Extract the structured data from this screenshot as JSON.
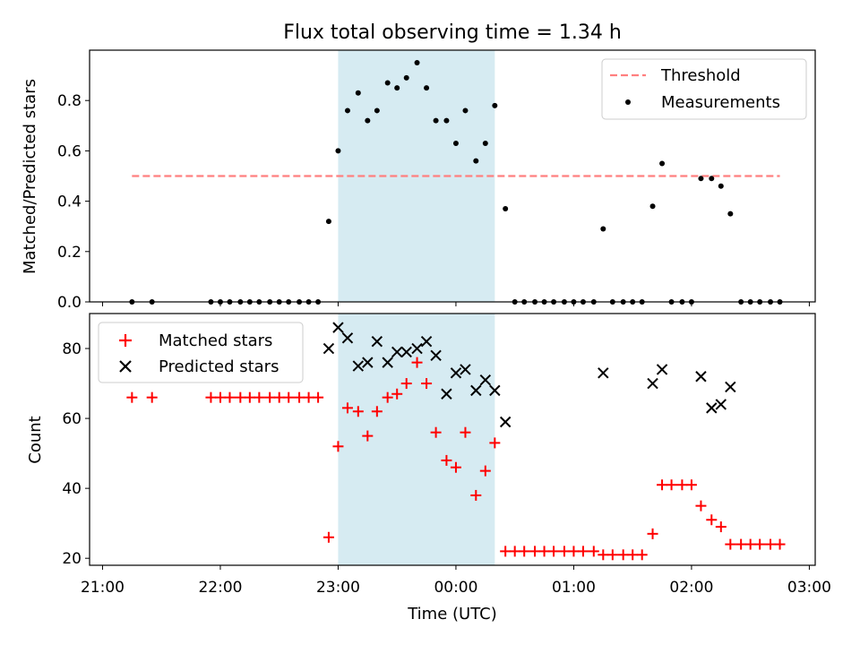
{
  "chart_data": [
    {
      "type": "scatter",
      "title": "Flux total observing time = 1.34 h",
      "xlabel": "",
      "ylabel": "Matched/Predicted stars",
      "x_unit": "hours after 21:00 UTC",
      "xlim": [
        -0.11,
        6.05
      ],
      "ylim": [
        0.0,
        1.0
      ],
      "yticks": [
        0.0,
        0.2,
        0.4,
        0.6,
        0.8
      ],
      "ytick_labels": [
        "0.0",
        "0.2",
        "0.4",
        "0.6",
        "0.8"
      ],
      "shaded_interval": [
        2.0,
        3.33
      ],
      "threshold": {
        "name": "Threshold",
        "y": 0.5,
        "x_range": [
          0.25,
          5.75
        ],
        "color": "#ff7f7f",
        "style": "dashed"
      },
      "legend": {
        "position": "upper right",
        "entries": [
          "Threshold",
          "Measurements"
        ]
      },
      "series": [
        {
          "name": "Measurements",
          "color": "#000000",
          "marker": "dot",
          "points": [
            [
              0.25,
              0.0
            ],
            [
              0.42,
              0.0
            ],
            [
              0.92,
              0.0
            ],
            [
              1.0,
              0.0
            ],
            [
              1.08,
              0.0
            ],
            [
              1.17,
              0.0
            ],
            [
              1.25,
              0.0
            ],
            [
              1.33,
              0.0
            ],
            [
              1.42,
              0.0
            ],
            [
              1.5,
              0.0
            ],
            [
              1.58,
              0.0
            ],
            [
              1.67,
              0.0
            ],
            [
              1.75,
              0.0
            ],
            [
              1.83,
              0.0
            ],
            [
              1.92,
              0.32
            ],
            [
              2.0,
              0.6
            ],
            [
              2.08,
              0.76
            ],
            [
              2.17,
              0.83
            ],
            [
              2.25,
              0.72
            ],
            [
              2.33,
              0.76
            ],
            [
              2.42,
              0.87
            ],
            [
              2.5,
              0.85
            ],
            [
              2.58,
              0.89
            ],
            [
              2.67,
              0.95
            ],
            [
              2.75,
              0.85
            ],
            [
              2.83,
              0.72
            ],
            [
              2.92,
              0.72
            ],
            [
              3.0,
              0.63
            ],
            [
              3.08,
              0.76
            ],
            [
              3.17,
              0.56
            ],
            [
              3.25,
              0.63
            ],
            [
              3.33,
              0.78
            ],
            [
              3.42,
              0.37
            ],
            [
              3.5,
              0.0
            ],
            [
              3.58,
              0.0
            ],
            [
              3.67,
              0.0
            ],
            [
              3.75,
              0.0
            ],
            [
              3.83,
              0.0
            ],
            [
              3.92,
              0.0
            ],
            [
              4.0,
              0.0
            ],
            [
              4.08,
              0.0
            ],
            [
              4.17,
              0.0
            ],
            [
              4.25,
              0.29
            ],
            [
              4.33,
              0.0
            ],
            [
              4.42,
              0.0
            ],
            [
              4.5,
              0.0
            ],
            [
              4.58,
              0.0
            ],
            [
              4.67,
              0.38
            ],
            [
              4.75,
              0.55
            ],
            [
              4.83,
              0.0
            ],
            [
              4.92,
              0.0
            ],
            [
              5.0,
              0.0
            ],
            [
              5.08,
              0.49
            ],
            [
              5.17,
              0.49
            ],
            [
              5.25,
              0.46
            ],
            [
              5.33,
              0.35
            ],
            [
              5.42,
              0.0
            ],
            [
              5.5,
              0.0
            ],
            [
              5.58,
              0.0
            ],
            [
              5.67,
              0.0
            ],
            [
              5.75,
              0.0
            ]
          ]
        }
      ]
    },
    {
      "type": "scatter",
      "title": "",
      "xlabel": "Time (UTC)",
      "ylabel": "Count",
      "x_unit": "hours after 21:00 UTC",
      "xlim": [
        -0.11,
        6.05
      ],
      "ylim": [
        18,
        90
      ],
      "yticks": [
        20,
        40,
        60,
        80
      ],
      "ytick_labels": [
        "20",
        "40",
        "60",
        "80"
      ],
      "xticks": [
        0,
        1,
        2,
        3,
        4,
        5,
        6
      ],
      "xtick_labels": [
        "21:00",
        "22:00",
        "23:00",
        "00:00",
        "01:00",
        "02:00",
        "03:00"
      ],
      "shaded_interval": [
        2.0,
        3.33
      ],
      "legend": {
        "position": "upper left",
        "entries": [
          "Matched stars",
          "Predicted stars"
        ]
      },
      "series": [
        {
          "name": "Matched stars",
          "color": "#ff0000",
          "marker": "plus",
          "points": [
            [
              0.25,
              66
            ],
            [
              0.42,
              66
            ],
            [
              0.92,
              66
            ],
            [
              1.0,
              66
            ],
            [
              1.08,
              66
            ],
            [
              1.17,
              66
            ],
            [
              1.25,
              66
            ],
            [
              1.33,
              66
            ],
            [
              1.42,
              66
            ],
            [
              1.5,
              66
            ],
            [
              1.58,
              66
            ],
            [
              1.67,
              66
            ],
            [
              1.75,
              66
            ],
            [
              1.83,
              66
            ],
            [
              1.92,
              26
            ],
            [
              2.0,
              52
            ],
            [
              2.08,
              63
            ],
            [
              2.17,
              62
            ],
            [
              2.25,
              55
            ],
            [
              2.33,
              62
            ],
            [
              2.42,
              66
            ],
            [
              2.5,
              67
            ],
            [
              2.58,
              70
            ],
            [
              2.67,
              76
            ],
            [
              2.75,
              70
            ],
            [
              2.83,
              56
            ],
            [
              2.92,
              48
            ],
            [
              3.0,
              46
            ],
            [
              3.08,
              56
            ],
            [
              3.17,
              38
            ],
            [
              3.25,
              45
            ],
            [
              3.33,
              53
            ],
            [
              3.42,
              22
            ],
            [
              3.5,
              22
            ],
            [
              3.58,
              22
            ],
            [
              3.67,
              22
            ],
            [
              3.75,
              22
            ],
            [
              3.83,
              22
            ],
            [
              3.92,
              22
            ],
            [
              4.0,
              22
            ],
            [
              4.08,
              22
            ],
            [
              4.17,
              22
            ],
            [
              4.25,
              21
            ],
            [
              4.33,
              21
            ],
            [
              4.42,
              21
            ],
            [
              4.5,
              21
            ],
            [
              4.58,
              21
            ],
            [
              4.67,
              27
            ],
            [
              4.75,
              41
            ],
            [
              4.83,
              41
            ],
            [
              4.92,
              41
            ],
            [
              5.0,
              41
            ],
            [
              5.08,
              35
            ],
            [
              5.17,
              31
            ],
            [
              5.25,
              29
            ],
            [
              5.33,
              24
            ],
            [
              5.42,
              24
            ],
            [
              5.5,
              24
            ],
            [
              5.58,
              24
            ],
            [
              5.67,
              24
            ],
            [
              5.75,
              24
            ]
          ]
        },
        {
          "name": "Predicted stars",
          "color": "#000000",
          "marker": "x",
          "points": [
            [
              1.92,
              80
            ],
            [
              2.0,
              86
            ],
            [
              2.08,
              83
            ],
            [
              2.17,
              75
            ],
            [
              2.25,
              76
            ],
            [
              2.33,
              82
            ],
            [
              2.42,
              76
            ],
            [
              2.5,
              79
            ],
            [
              2.58,
              79
            ],
            [
              2.67,
              80
            ],
            [
              2.75,
              82
            ],
            [
              2.83,
              78
            ],
            [
              2.92,
              67
            ],
            [
              3.0,
              73
            ],
            [
              3.08,
              74
            ],
            [
              3.17,
              68
            ],
            [
              3.25,
              71
            ],
            [
              3.33,
              68
            ],
            [
              3.42,
              59
            ],
            [
              4.25,
              73
            ],
            [
              4.67,
              70
            ],
            [
              4.75,
              74
            ],
            [
              5.08,
              72
            ],
            [
              5.17,
              63
            ],
            [
              5.25,
              64
            ],
            [
              5.33,
              69
            ]
          ]
        }
      ]
    }
  ]
}
